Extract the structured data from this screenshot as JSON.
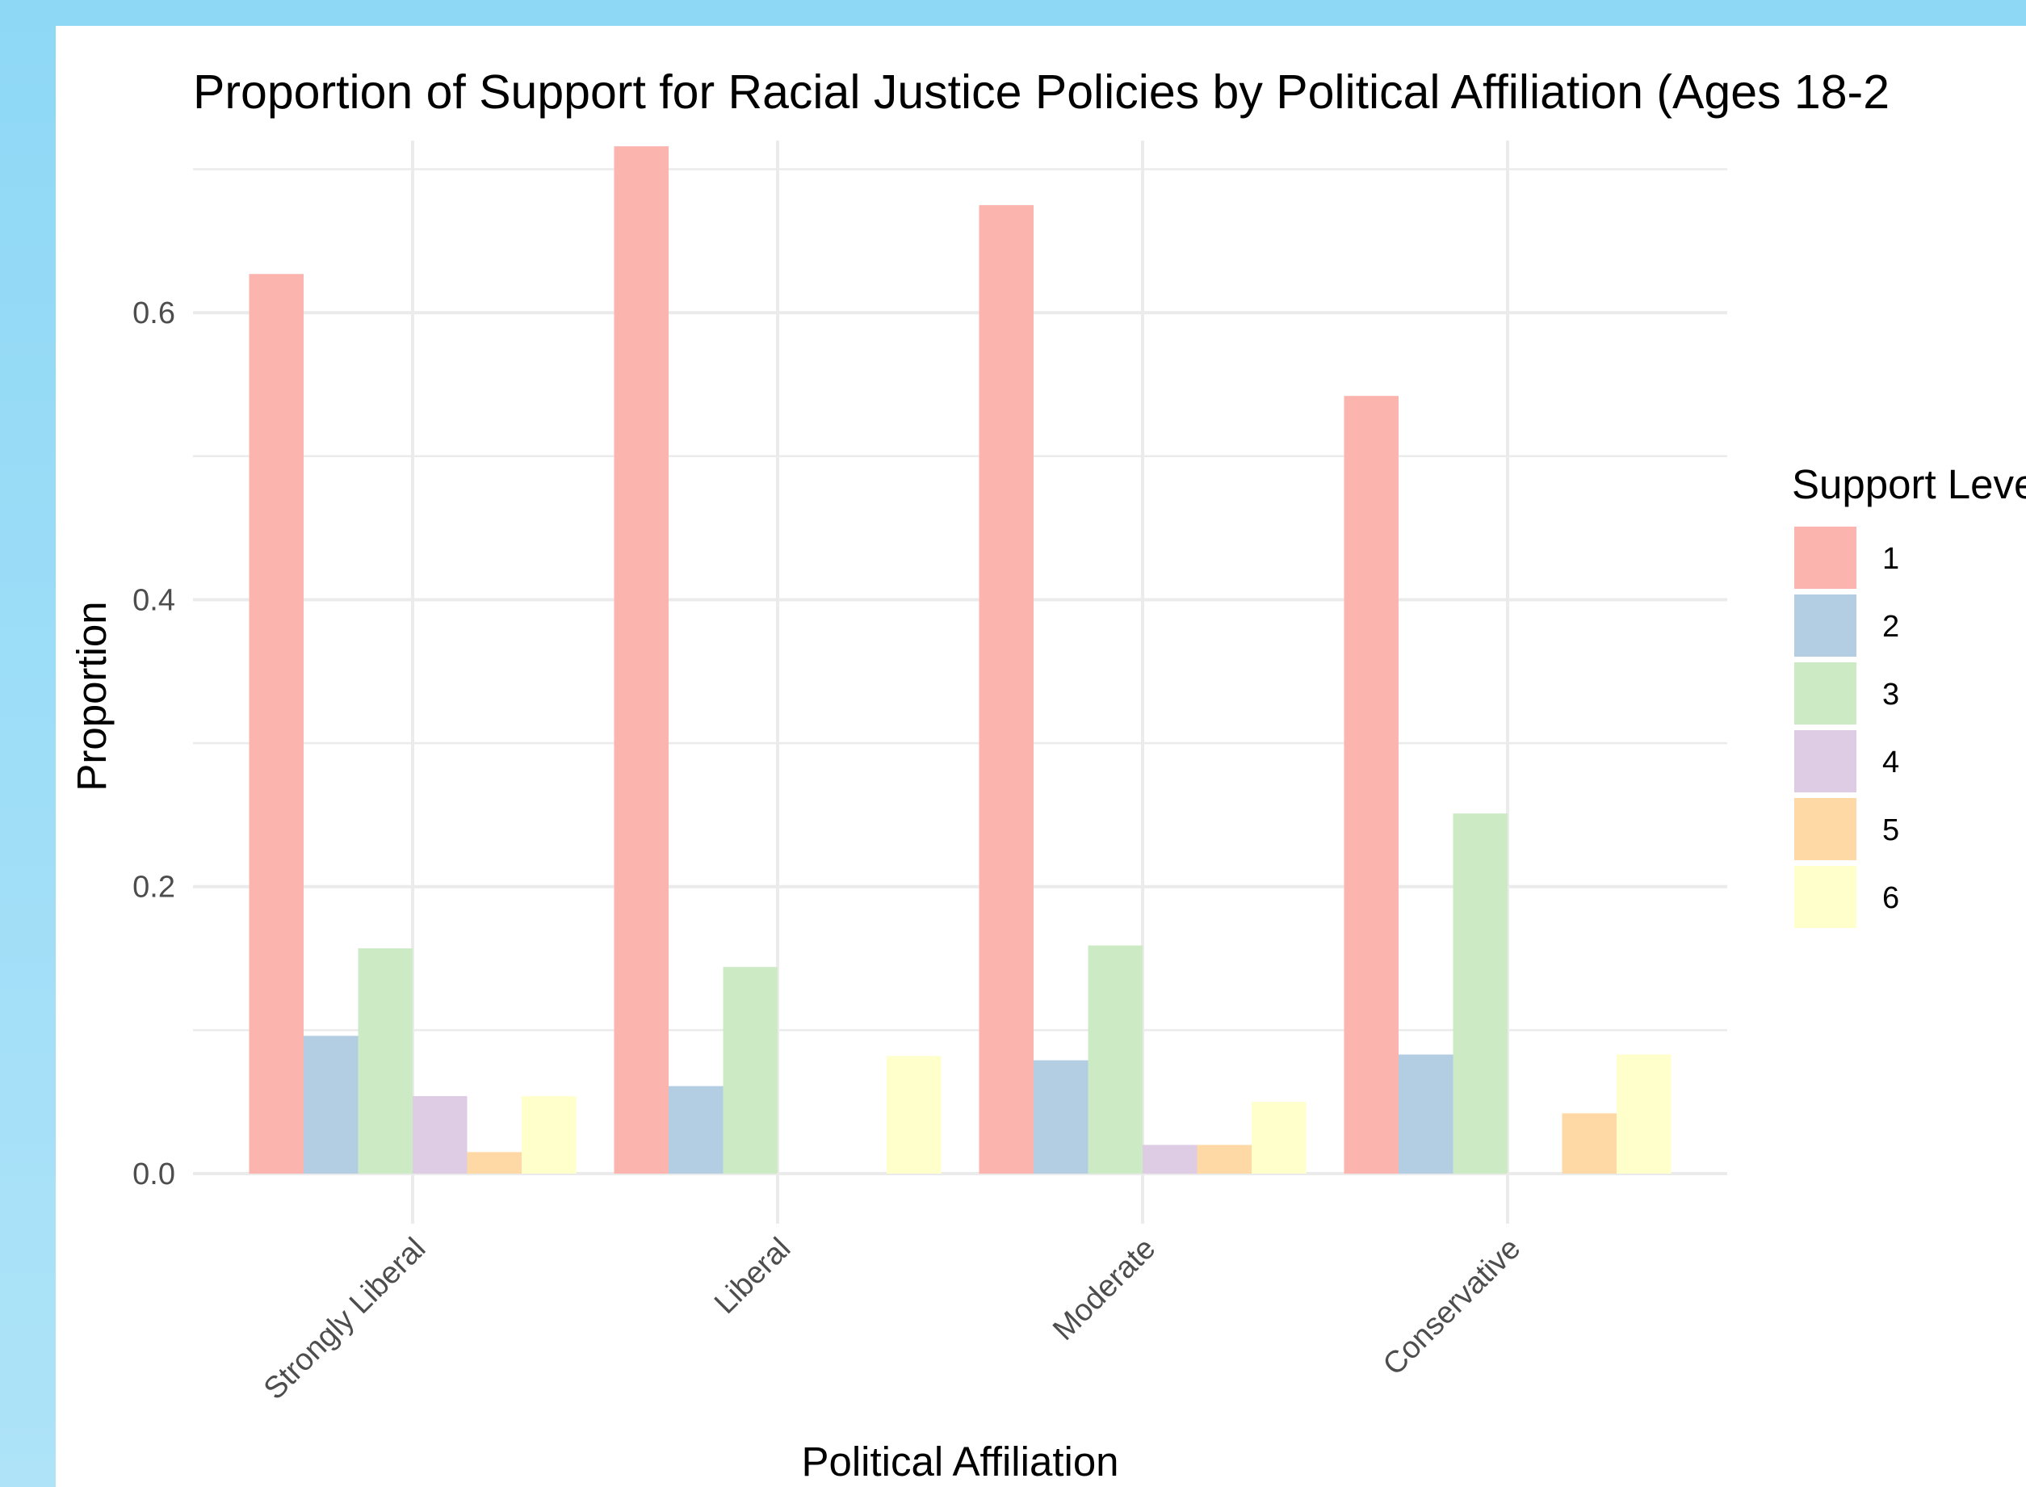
{
  "chart_data": {
    "type": "bar",
    "title": "Proportion of Support for Racial Justice Policies by Political Affiliation (Ages 18-2",
    "xlabel": "Political Affiliation",
    "ylabel": "Proportion",
    "ylim": [
      0,
      0.72
    ],
    "yticks": [
      "0.0",
      "0.2",
      "0.4",
      "0.6"
    ],
    "categories": [
      "Strongly Liberal",
      "Liberal",
      "Moderate",
      "Conservative"
    ],
    "legend_title": "Support Leve",
    "legend_position": "right",
    "grid": true,
    "series": [
      {
        "name": "1",
        "color": "#FBB4AE",
        "values": [
          0.627,
          0.716,
          0.675,
          0.542
        ]
      },
      {
        "name": "2",
        "color": "#B3CDE3",
        "values": [
          0.096,
          0.061,
          0.079,
          0.083
        ]
      },
      {
        "name": "3",
        "color": "#CCEBC5",
        "values": [
          0.157,
          0.144,
          0.159,
          0.251
        ]
      },
      {
        "name": "4",
        "color": "#DECBE4",
        "values": [
          0.054,
          0,
          0.02,
          0
        ]
      },
      {
        "name": "5",
        "color": "#FED9A6",
        "values": [
          0.015,
          0,
          0.02,
          0.042
        ]
      },
      {
        "name": "6",
        "color": "#FFFFCC",
        "values": [
          0.054,
          0.082,
          0.05,
          0.083
        ]
      }
    ]
  }
}
